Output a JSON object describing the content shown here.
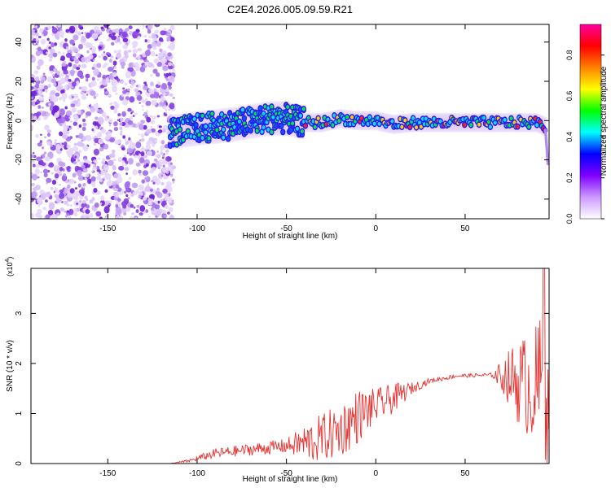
{
  "title": "C2E4.2026.005.09.59.R21",
  "colors": {
    "axis": "#000000",
    "snr_line": "#e8302e",
    "scatter_purple": "#7a1ed6",
    "background": "#ffffff"
  },
  "chart_data": [
    {
      "type": "heatmap",
      "name": "spectrogram",
      "title": "C2E4.2026.005.09.59.R21",
      "xlabel": "Height of straight line (km)",
      "ylabel": "Frequency (Hz)",
      "xlim": [
        -193,
        97
      ],
      "ylim": [
        -50,
        49
      ],
      "xticks": [
        -150,
        -100,
        -50,
        0,
        50
      ],
      "xtick_labels": [
        "-150",
        "-100",
        "-50",
        "0",
        "50"
      ],
      "yticks": [
        -40,
        -20,
        0,
        20,
        40
      ],
      "ytick_labels": [
        "-40",
        "-20",
        "0",
        "20",
        "40"
      ],
      "noise_region_x": [
        -193,
        -115
      ],
      "ridge": {
        "x": [
          -115,
          -100,
          -80,
          -60,
          -50,
          -40,
          -30,
          -20,
          -10,
          0,
          10,
          20,
          40,
          60,
          80,
          90,
          95
        ],
        "freq": [
          -6,
          -4,
          -2,
          1,
          1,
          -1,
          -1,
          1,
          0,
          0,
          -2,
          -1,
          -1,
          -1,
          -1,
          -1,
          -3
        ]
      },
      "colorbar": {
        "label": "Normalized spectral amplitude",
        "range": [
          0,
          0.95
        ],
        "ticks": [
          0.0,
          0.2,
          0.4,
          0.6,
          0.8
        ],
        "tick_labels": [
          "0.0",
          "0.2",
          "0.4",
          "0.6",
          "0.8"
        ],
        "colormap": [
          "#ffffff",
          "#cc99ff",
          "#8000ff",
          "#0000ff",
          "#00ffff",
          "#00ff00",
          "#ffff00",
          "#ff8000",
          "#ff0000",
          "#ff00a0"
        ]
      }
    },
    {
      "type": "line",
      "name": "snr",
      "xlabel": "Height of straight line (km)",
      "ylabel": "SNR (10 * v/v)",
      "y_multiplier": "(x10",
      "y_multiplier_exp": "4",
      "y_multiplier_close": ")",
      "xlim": [
        -193,
        97
      ],
      "ylim": [
        0,
        3.9
      ],
      "xticks": [
        -150,
        -100,
        -50,
        0,
        50
      ],
      "xtick_labels": [
        "-150",
        "-100",
        "-50",
        "0",
        "50"
      ],
      "yticks": [
        0,
        1,
        2,
        3
      ],
      "ytick_labels": [
        "0",
        "1",
        "2",
        "3"
      ],
      "series": [
        {
          "name": "SNR",
          "envelope_x": [
            -193,
            -115,
            -105,
            -90,
            -70,
            -50,
            -35,
            -20,
            -10,
            0,
            10,
            20,
            30,
            45,
            65,
            72,
            80,
            88,
            93,
            97
          ],
          "envelope_mean": [
            0,
            0,
            0.05,
            0.2,
            0.28,
            0.35,
            0.45,
            0.65,
            0.95,
            1.15,
            1.3,
            1.5,
            1.65,
            1.75,
            1.77,
            1.75,
            1.65,
            1.5,
            1.55,
            0.8
          ],
          "envelope_amp": [
            0,
            0,
            0.03,
            0.1,
            0.12,
            0.15,
            0.45,
            0.55,
            0.55,
            0.35,
            0.3,
            0.12,
            0.05,
            0.04,
            0.04,
            0.4,
            0.9,
            1.1,
            1.6,
            0.9
          ],
          "peak_x": 94,
          "peak_y": 3.9
        }
      ]
    }
  ]
}
